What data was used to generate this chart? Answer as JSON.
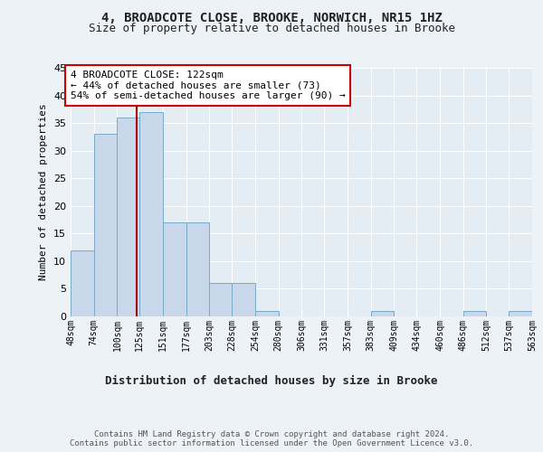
{
  "title1": "4, BROADCOTE CLOSE, BROOKE, NORWICH, NR15 1HZ",
  "title2": "Size of property relative to detached houses in Brooke",
  "xlabel": "Distribution of detached houses by size in Brooke",
  "ylabel": "Number of detached properties",
  "bar_values": [
    12,
    33,
    36,
    37,
    17,
    17,
    6,
    6,
    1,
    0,
    0,
    0,
    0,
    1,
    0,
    0,
    0,
    1,
    0,
    1
  ],
  "bin_edges": [
    48,
    74,
    100,
    125,
    151,
    177,
    203,
    228,
    254,
    280,
    306,
    331,
    357,
    383,
    409,
    434,
    460,
    486,
    512,
    537,
    563
  ],
  "tick_labels": [
    "48sqm",
    "74sqm",
    "100sqm",
    "125sqm",
    "151sqm",
    "177sqm",
    "203sqm",
    "228sqm",
    "254sqm",
    "280sqm",
    "306sqm",
    "331sqm",
    "357sqm",
    "383sqm",
    "409sqm",
    "434sqm",
    "460sqm",
    "486sqm",
    "512sqm",
    "537sqm",
    "563sqm"
  ],
  "bar_color": "#c8d8ea",
  "bar_edge_color": "#7aaac8",
  "property_line_x": 122,
  "property_line_color": "#aa0000",
  "annotation_text": "4 BROADCOTE CLOSE: 122sqm\n← 44% of detached houses are smaller (73)\n54% of semi-detached houses are larger (90) →",
  "annotation_box_facecolor": "#ffffff",
  "annotation_box_edgecolor": "#cc0000",
  "footer_text": "Contains HM Land Registry data © Crown copyright and database right 2024.\nContains public sector information licensed under the Open Government Licence v3.0.",
  "ylim": [
    0,
    45
  ],
  "background_color": "#edf2f7",
  "plot_background": "#e4ecf4",
  "title1_fontsize": 10,
  "title2_fontsize": 9,
  "ylabel_fontsize": 8,
  "xlabel_fontsize": 9,
  "tick_fontsize": 7,
  "ytick_fontsize": 8,
  "annotation_fontsize": 8,
  "footer_fontsize": 6.5
}
